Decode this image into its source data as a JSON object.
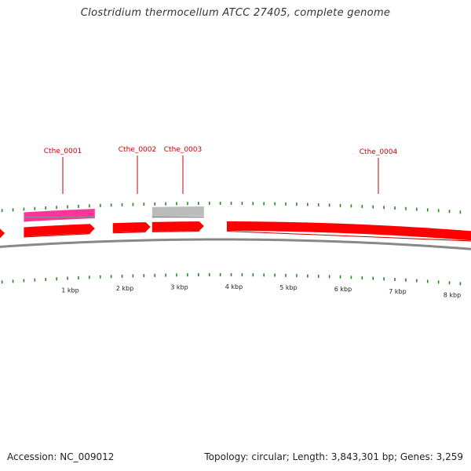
{
  "title": "Clostridium thermocellum ATCC 27405, complete genome",
  "footer": {
    "accession": "Accession: NC_009012",
    "summary": "Topology: circular; Length: 3,843,301 bp; Genes: 3,259"
  },
  "colors": {
    "forward_gene": "#ff0000",
    "highlight_gene": "#ff33aa",
    "other_gene": "#bbbbbb",
    "tick": "#228822",
    "backbone": "#888888",
    "label": "#cc0000"
  },
  "genes": [
    {
      "name": "Cthe_0001",
      "color": "#ff3399",
      "start_kbp": 0.15,
      "end_kbp": 1.45,
      "lane": "upper"
    },
    {
      "name": "Cthe_0002",
      "color": "#ff0000",
      "start_kbp": 1.78,
      "end_kbp": 2.47,
      "lane": "main"
    },
    {
      "name": "Cthe_0003",
      "color": "#bbbbbb",
      "start_kbp": 2.5,
      "end_kbp": 3.45,
      "lane": "upper"
    },
    {
      "name": "Cthe_0004",
      "color": "#ff0000",
      "start_kbp": 3.87,
      "end_kbp": 9.5,
      "lane": "main"
    }
  ],
  "unlabeled_genes": [
    {
      "color": "#ff0000",
      "start_kbp": -0.4,
      "end_kbp": -0.2,
      "lane": "main"
    },
    {
      "color": "#ff0000",
      "start_kbp": 0.15,
      "end_kbp": 1.45,
      "lane": "main"
    },
    {
      "color": "#ff0000",
      "start_kbp": 2.5,
      "end_kbp": 3.45,
      "lane": "main"
    }
  ],
  "scale_labels": [
    "1 kbp",
    "2 kbp",
    "3 kbp",
    "4 kbp",
    "5 kbp",
    "6 kbp",
    "7 kbp",
    "8 kbp"
  ]
}
